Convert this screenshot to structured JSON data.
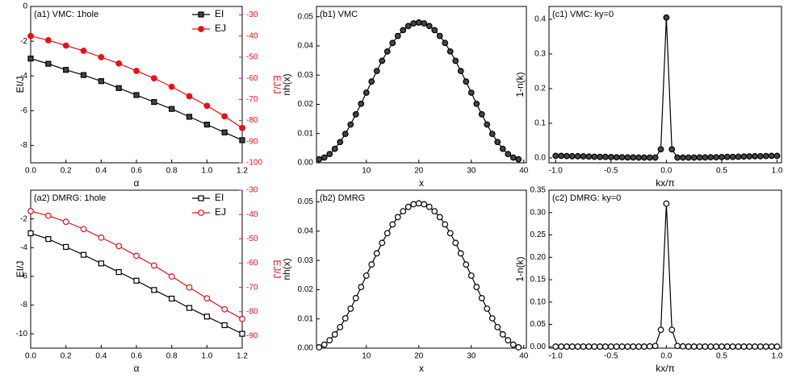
{
  "chart_data": [
    {
      "type": "line",
      "title": "(a1) VMC: 1hole",
      "xlabel": "α",
      "ylabel": "EI/J",
      "y2label": "EJ/J",
      "y2color": "#e8101a",
      "x": [
        0,
        0.1,
        0.2,
        0.3,
        0.4,
        0.5,
        0.6,
        0.7,
        0.8,
        0.9,
        1.0,
        1.1,
        1.2
      ],
      "series": [
        {
          "name": "EI",
          "color": "#000000",
          "marker": "square",
          "filled": true,
          "values": [
            -3.0,
            -3.3,
            -3.65,
            -3.95,
            -4.3,
            -4.7,
            -5.1,
            -5.5,
            -5.9,
            -6.35,
            -6.8,
            -7.25,
            -7.7
          ]
        },
        {
          "name": "EJ",
          "color": "#e8101a",
          "marker": "circle",
          "filled": true,
          "axis": "y2",
          "values": [
            -40,
            -42,
            -44.5,
            -47,
            -50,
            -53,
            -56.5,
            -60,
            -64,
            -68.5,
            -73,
            -78,
            -83.5
          ]
        }
      ],
      "xlim": [
        0,
        1.2
      ],
      "xticks": [
        {
          "value": 0,
          "label": "0.0"
        },
        0.2,
        0.4,
        0.6,
        0.8,
        {
          "value": 1,
          "label": "1.0"
        },
        1.2
      ],
      "ylim": [
        -9,
        0
      ],
      "yticks": [
        0,
        -2,
        -4,
        -6,
        -8
      ],
      "y2lim": [
        -100,
        -26
      ],
      "y2ticks": [
        -30,
        -40,
        -50,
        -60,
        -70,
        -80,
        -90,
        -100
      ],
      "legend": "upper right"
    },
    {
      "type": "line",
      "title": "(a2) DMRG: 1hole",
      "xlabel": "α",
      "ylabel": "EI/J",
      "y2label": "EJ/J",
      "y2color": "#e8101a",
      "x": [
        0,
        0.1,
        0.2,
        0.3,
        0.4,
        0.5,
        0.6,
        0.7,
        0.8,
        0.9,
        1.0,
        1.1,
        1.2
      ],
      "series": [
        {
          "name": "EI",
          "color": "#000000",
          "marker": "square",
          "filled": false,
          "values": [
            -3.0,
            -3.4,
            -3.95,
            -4.5,
            -5.1,
            -5.7,
            -6.3,
            -6.95,
            -7.55,
            -8.2,
            -8.8,
            -9.4,
            -10.0
          ]
        },
        {
          "name": "EJ",
          "color": "#e8101a",
          "marker": "circle",
          "filled": false,
          "axis": "y2",
          "values": [
            -38.6,
            -40.5,
            -43,
            -46,
            -49.5,
            -53,
            -57,
            -61,
            -65.5,
            -70,
            -74.5,
            -79,
            -83
          ]
        }
      ],
      "xlim": [
        0,
        1.2
      ],
      "xticks": [
        {
          "value": 0,
          "label": "0.0"
        },
        0.2,
        0.4,
        0.6,
        0.8,
        {
          "value": 1,
          "label": "1.0"
        },
        1.2
      ],
      "ylim": [
        -11,
        0
      ],
      "yticks": [
        -2,
        -4,
        -6,
        -8,
        -10
      ],
      "y2lim": [
        -95,
        -30
      ],
      "y2ticks": [
        -30,
        -40,
        -50,
        -60,
        -70,
        -80,
        -90
      ],
      "legend": "upper right"
    },
    {
      "type": "line",
      "title": "(b1) VMC",
      "xlabel": "x",
      "ylabel": "nh(x)",
      "x": [
        1,
        2,
        3,
        4,
        5,
        6,
        7,
        8,
        9,
        10,
        11,
        12,
        13,
        14,
        15,
        16,
        17,
        18,
        19,
        20,
        21,
        22,
        23,
        24,
        25,
        26,
        27,
        28,
        29,
        30,
        31,
        32,
        33,
        34,
        35,
        36,
        37,
        38,
        39
      ],
      "series": [
        {
          "color": "#000000",
          "marker": "circle",
          "filled": true,
          "values": [
            0.0012,
            0.0018,
            0.003,
            0.0048,
            0.0071,
            0.0099,
            0.0131,
            0.0166,
            0.0202,
            0.024,
            0.0278,
            0.0314,
            0.0349,
            0.0381,
            0.041,
            0.0434,
            0.0454,
            0.0468,
            0.0477,
            0.048,
            0.0477,
            0.0468,
            0.0454,
            0.0434,
            0.041,
            0.0381,
            0.0349,
            0.0314,
            0.0278,
            0.024,
            0.0202,
            0.0166,
            0.0131,
            0.0099,
            0.0071,
            0.0048,
            0.003,
            0.0018,
            0.0012
          ]
        }
      ],
      "xlim": [
        0.5,
        40.5
      ],
      "xticks": [
        10,
        20,
        30,
        40
      ],
      "ylim": [
        0,
        0.0535
      ],
      "yticks": [
        {
          "value": 0,
          "label": "0.00"
        },
        0.01,
        0.02,
        0.03,
        0.04,
        0.05
      ]
    },
    {
      "type": "line",
      "title": "(b2) DMRG",
      "xlabel": "x",
      "ylabel": "nh(x)",
      "x": [
        1,
        2,
        3,
        4,
        5,
        6,
        7,
        8,
        9,
        10,
        11,
        12,
        13,
        14,
        15,
        16,
        17,
        18,
        19,
        20,
        21,
        22,
        23,
        24,
        25,
        26,
        27,
        28,
        29,
        30,
        31,
        32,
        33,
        34,
        35,
        36,
        37,
        38,
        39
      ],
      "series": [
        {
          "color": "#000000",
          "marker": "circle",
          "filled": false,
          "values": [
            0.0003,
            0.0012,
            0.0027,
            0.0047,
            0.0072,
            0.0102,
            0.0135,
            0.0171,
            0.0209,
            0.0248,
            0.0286,
            0.0324,
            0.036,
            0.0393,
            0.0423,
            0.0448,
            0.0468,
            0.0483,
            0.0492,
            0.0495,
            0.0492,
            0.0483,
            0.0468,
            0.0448,
            0.0423,
            0.0393,
            0.036,
            0.0324,
            0.0286,
            0.0248,
            0.0209,
            0.0171,
            0.0135,
            0.0102,
            0.0072,
            0.0047,
            0.0027,
            0.0012,
            0.0003
          ]
        }
      ],
      "xlim": [
        0.5,
        40.5
      ],
      "xticks": [
        10,
        20,
        30,
        40
      ],
      "ylim": [
        0,
        0.054
      ],
      "yticks": [
        {
          "value": 0,
          "label": "0.00"
        },
        0.01,
        0.02,
        0.03,
        0.04,
        0.05
      ]
    },
    {
      "type": "line",
      "title": "(c1) VMC: ky=0",
      "xlabel": "kx/π",
      "ylabel": "1-n(k)",
      "x": [
        -1,
        -0.95,
        -0.9,
        -0.85,
        -0.8,
        -0.75,
        -0.7,
        -0.65,
        -0.6,
        -0.55,
        -0.5,
        -0.45,
        -0.4,
        -0.35,
        -0.3,
        -0.25,
        -0.2,
        -0.15,
        -0.1,
        -0.05,
        0,
        0.05,
        0.1,
        0.15,
        0.2,
        0.25,
        0.3,
        0.35,
        0.4,
        0.45,
        0.5,
        0.55,
        0.6,
        0.65,
        0.7,
        0.75,
        0.8,
        0.85,
        0.9,
        0.95,
        1
      ],
      "series": [
        {
          "color": "#000000",
          "marker": "circle",
          "filled": true,
          "values": [
            0.006,
            0.006,
            0.0055,
            0.005,
            0.005,
            0.0045,
            0.004,
            0.0035,
            0.003,
            0.003,
            0.0025,
            0.002,
            0.002,
            0.0015,
            0.0015,
            0.001,
            0.001,
            0.001,
            0.001,
            0.025,
            0.405,
            0.025,
            0.001,
            0.001,
            0.001,
            0.001,
            0.0015,
            0.0015,
            0.002,
            0.002,
            0.0025,
            0.003,
            0.003,
            0.0035,
            0.004,
            0.0045,
            0.005,
            0.005,
            0.0055,
            0.006,
            0.006
          ]
        }
      ],
      "xlim": [
        -1.06,
        1.04
      ],
      "xticks": [
        {
          "value": -1,
          "label": "-1.0"
        },
        -0.5,
        {
          "value": 0,
          "label": "0.0"
        },
        0.5,
        {
          "value": 1,
          "label": "1.0"
        }
      ],
      "ylim": [
        -0.014,
        0.437
      ],
      "yticks": [
        {
          "value": 0,
          "label": "0.0"
        },
        0.1,
        0.2,
        0.3,
        0.4
      ]
    },
    {
      "type": "line",
      "title": "(c2) DMRG: ky=0",
      "xlabel": "kx/π",
      "ylabel": "1-n(k)",
      "x": [
        -1,
        -0.95,
        -0.9,
        -0.85,
        -0.8,
        -0.75,
        -0.7,
        -0.65,
        -0.6,
        -0.55,
        -0.5,
        -0.45,
        -0.4,
        -0.35,
        -0.3,
        -0.25,
        -0.2,
        -0.15,
        -0.1,
        -0.05,
        0,
        0.05,
        0.1,
        0.15,
        0.2,
        0.25,
        0.3,
        0.35,
        0.4,
        0.45,
        0.5,
        0.55,
        0.6,
        0.65,
        0.7,
        0.75,
        0.8,
        0.85,
        0.9,
        0.95,
        1
      ],
      "series": [
        {
          "color": "#000000",
          "marker": "circle",
          "filled": false,
          "values": [
            0.0005,
            0.0005,
            0.0005,
            0.0005,
            0.0005,
            0.0005,
            0.0005,
            0.0005,
            0.0005,
            0.0005,
            0.0005,
            0.0005,
            0.0005,
            0.0005,
            0.0005,
            0.0005,
            0.0005,
            0.001,
            0.002,
            0.038,
            0.32,
            0.038,
            0.002,
            0.001,
            0.0005,
            0.0005,
            0.0005,
            0.0005,
            0.0005,
            0.0005,
            0.0005,
            0.0005,
            0.0005,
            0.0005,
            0.0005,
            0.0005,
            0.0005,
            0.0005,
            0.0005,
            0.0005,
            0.0005
          ]
        }
      ],
      "xlim": [
        -1.06,
        1.04
      ],
      "xticks": [
        {
          "value": -1,
          "label": "-1.0"
        },
        -0.5,
        {
          "value": 0,
          "label": "0.0"
        },
        0.5,
        {
          "value": 1,
          "label": "1.0"
        }
      ],
      "ylim": [
        -0.003,
        0.35
      ],
      "yticks": [
        {
          "value": 0,
          "label": "0.00"
        },
        0.05,
        {
          "value": 0.1,
          "label": "0.10"
        },
        0.15,
        {
          "value": 0.2,
          "label": "0.20"
        },
        0.25,
        {
          "value": 0.3,
          "label": "0.30"
        },
        0.35
      ]
    }
  ]
}
